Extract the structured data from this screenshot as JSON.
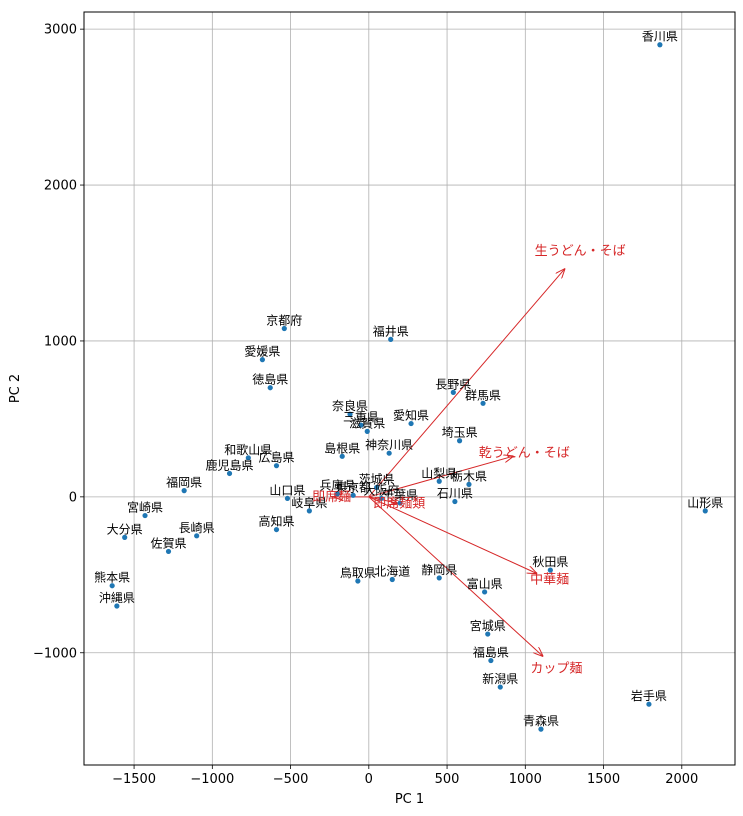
{
  "chart_data": {
    "type": "scatter",
    "xlabel": "PC 1",
    "ylabel": "PC 2",
    "xlim": [
      -1820,
      2340
    ],
    "ylim": [
      -1720,
      3110
    ],
    "xticks": [
      -1500,
      -1000,
      -500,
      0,
      500,
      1000,
      1500,
      2000
    ],
    "xtick_labels": [
      "−1500",
      "−1000",
      "−500",
      "0",
      "500",
      "1000",
      "1500",
      "2000"
    ],
    "yticks": [
      -1000,
      0,
      1000,
      2000,
      3000
    ],
    "ytick_labels": [
      "−1000",
      "0",
      "1000",
      "2000",
      "3000"
    ],
    "grid": true,
    "point_color": "#1f77b4",
    "loading_color": "#d62728",
    "points": [
      {
        "label": "香川県",
        "x": 1860,
        "y": 2900
      },
      {
        "label": "京都府",
        "x": -540,
        "y": 1080
      },
      {
        "label": "福井県",
        "x": 140,
        "y": 1010
      },
      {
        "label": "愛媛県",
        "x": -680,
        "y": 880
      },
      {
        "label": "徳島県",
        "x": -630,
        "y": 700
      },
      {
        "label": "長野県",
        "x": 540,
        "y": 670
      },
      {
        "label": "群馬県",
        "x": 730,
        "y": 600
      },
      {
        "label": "奈良県",
        "x": -120,
        "y": 530
      },
      {
        "label": "三重県",
        "x": -50,
        "y": 460
      },
      {
        "label": "滋賀県",
        "x": -10,
        "y": 420
      },
      {
        "label": "愛知県",
        "x": 270,
        "y": 470
      },
      {
        "label": "埼玉県",
        "x": 580,
        "y": 360
      },
      {
        "label": "和歌山県",
        "x": -770,
        "y": 250
      },
      {
        "label": "島根県",
        "x": -170,
        "y": 260
      },
      {
        "label": "神奈川県",
        "x": 130,
        "y": 280
      },
      {
        "label": "広島県",
        "x": -590,
        "y": 200
      },
      {
        "label": "鹿児島県",
        "x": -890,
        "y": 150
      },
      {
        "label": "福岡県",
        "x": -1180,
        "y": 40
      },
      {
        "label": "山梨県",
        "x": 450,
        "y": 100
      },
      {
        "label": "栃木県",
        "x": 640,
        "y": 80
      },
      {
        "label": "茨城県",
        "x": 50,
        "y": 60
      },
      {
        "label": "石川県",
        "x": 550,
        "y": -30
      },
      {
        "label": "千葉県",
        "x": 200,
        "y": -40
      },
      {
        "label": "東京都",
        "x": -100,
        "y": 10
      },
      {
        "label": "大阪府",
        "x": 80,
        "y": -10
      },
      {
        "label": "兵庫県",
        "x": -200,
        "y": 20
      },
      {
        "label": "山口県",
        "x": -520,
        "y": -10
      },
      {
        "label": "岐阜県",
        "x": -380,
        "y": -90
      },
      {
        "label": "山形県",
        "x": 2150,
        "y": -90
      },
      {
        "label": "宮崎県",
        "x": -1430,
        "y": -120
      },
      {
        "label": "大分県",
        "x": -1560,
        "y": -260
      },
      {
        "label": "長崎県",
        "x": -1100,
        "y": -250
      },
      {
        "label": "高知県",
        "x": -590,
        "y": -210
      },
      {
        "label": "佐賀県",
        "x": -1280,
        "y": -350
      },
      {
        "label": "秋田県",
        "x": 1160,
        "y": -470
      },
      {
        "label": "静岡県",
        "x": 450,
        "y": -520
      },
      {
        "label": "鳥取県",
        "x": -70,
        "y": -540
      },
      {
        "label": "北海道",
        "x": 150,
        "y": -530
      },
      {
        "label": "富山県",
        "x": 740,
        "y": -610
      },
      {
        "label": "熊本県",
        "x": -1640,
        "y": -570
      },
      {
        "label": "沖縄県",
        "x": -1610,
        "y": -700
      },
      {
        "label": "宮城県",
        "x": 760,
        "y": -880
      },
      {
        "label": "福島県",
        "x": 780,
        "y": -1050
      },
      {
        "label": "新潟県",
        "x": 840,
        "y": -1220
      },
      {
        "label": "岩手県",
        "x": 1790,
        "y": -1330
      },
      {
        "label": "青森県",
        "x": 1100,
        "y": -1490
      }
    ],
    "loadings": [
      {
        "label": "生うどん・そば",
        "x": 1250,
        "y": 1460
      },
      {
        "label": "乾うどん・そば",
        "x": 920,
        "y": 260
      },
      {
        "label": "中華麺",
        "x": 1070,
        "y": -490
      },
      {
        "label": "カップ麺",
        "x": 1110,
        "y": -1020
      },
      {
        "label": "即席麺",
        "x": -220,
        "y": 0
      },
      {
        "label": "即席麺類",
        "x": 180,
        "y": -40
      }
    ]
  }
}
